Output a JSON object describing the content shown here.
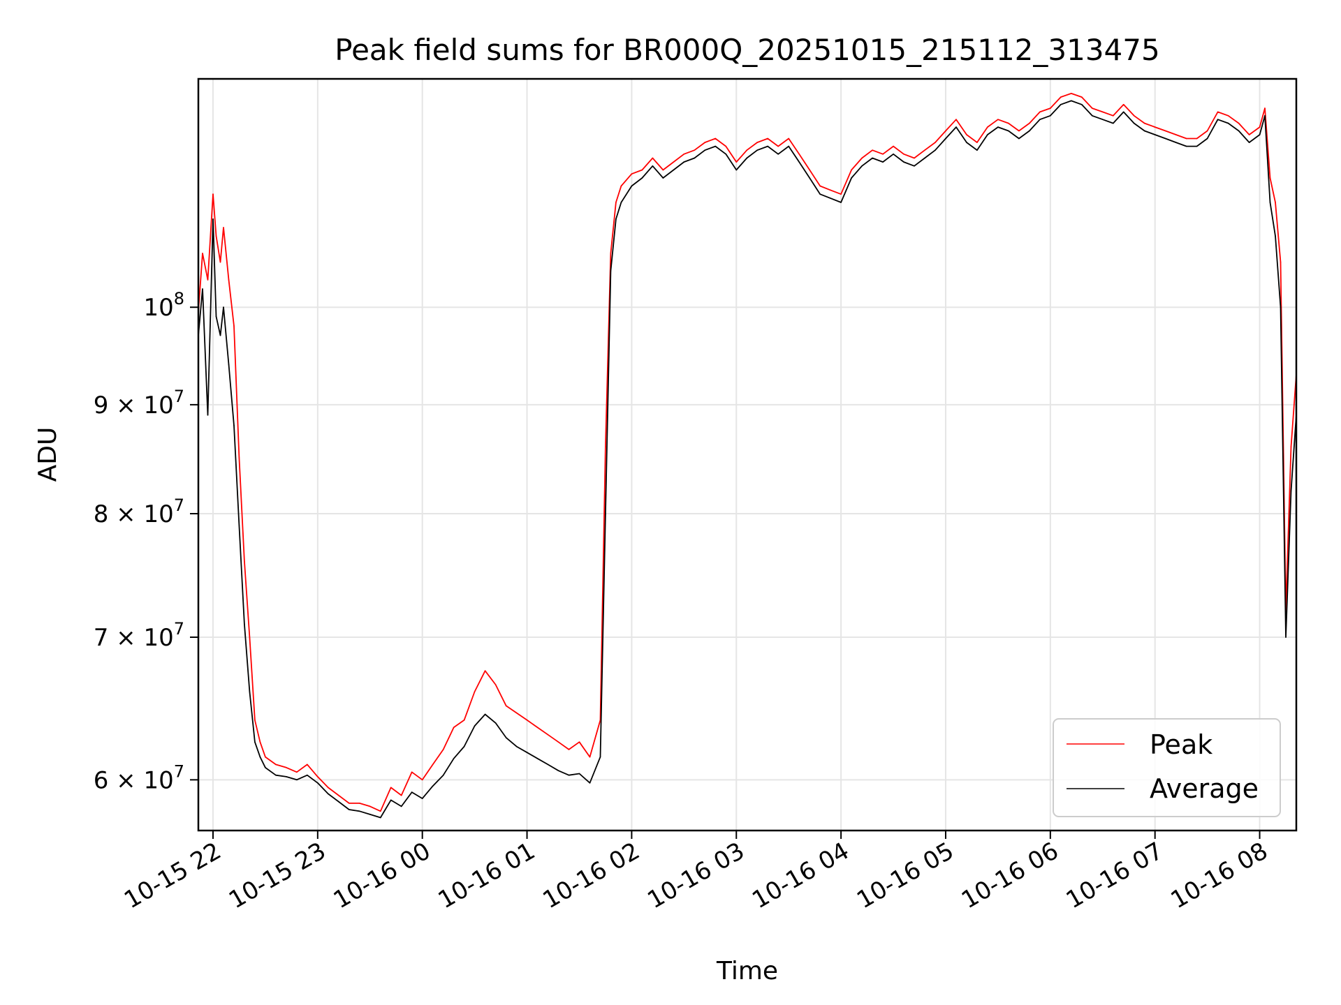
{
  "chart_data": {
    "type": "line",
    "title": "Peak field sums for BR000Q_20251015_215112_313475",
    "xlabel": "Time",
    "ylabel": "ADU",
    "y_scale": "log",
    "ylim": [
      56800000,
      128000000
    ],
    "xlim": [
      21.86,
      32.35
    ],
    "grid": true,
    "legend_position": "lower-right",
    "x_ticks": [
      {
        "value": 22,
        "label": "10-15 22"
      },
      {
        "value": 23,
        "label": "10-15 23"
      },
      {
        "value": 24,
        "label": "10-16 00"
      },
      {
        "value": 25,
        "label": "10-16 01"
      },
      {
        "value": 26,
        "label": "10-16 02"
      },
      {
        "value": 27,
        "label": "10-16 03"
      },
      {
        "value": 28,
        "label": "10-16 04"
      },
      {
        "value": 29,
        "label": "10-16 05"
      },
      {
        "value": 30,
        "label": "10-16 06"
      },
      {
        "value": 31,
        "label": "10-16 07"
      },
      {
        "value": 32,
        "label": "10-16 08"
      }
    ],
    "y_ticks": [
      {
        "value": 60000000,
        "label": "6 × 10⁷",
        "base": "6 × 10",
        "exp": "7"
      },
      {
        "value": 70000000,
        "label": "7 × 10⁷",
        "base": "7 × 10",
        "exp": "7"
      },
      {
        "value": 80000000,
        "label": "8 × 10⁷",
        "base": "8 × 10",
        "exp": "7"
      },
      {
        "value": 90000000,
        "label": "9 × 10⁷",
        "base": "9 × 10",
        "exp": "7"
      },
      {
        "value": 100000000,
        "label": "10⁸",
        "base": "10",
        "exp": "8"
      }
    ],
    "x_units": "hours since 2025-10-15 00:00",
    "series": [
      {
        "name": "Peak",
        "color": "#ff0000",
        "x": [
          21.86,
          21.9,
          21.95,
          22.0,
          22.03,
          22.07,
          22.1,
          22.15,
          22.2,
          22.25,
          22.3,
          22.35,
          22.4,
          22.45,
          22.5,
          22.6,
          22.7,
          22.8,
          22.9,
          23.0,
          23.1,
          23.2,
          23.3,
          23.4,
          23.5,
          23.6,
          23.7,
          23.8,
          23.9,
          24.0,
          24.1,
          24.2,
          24.3,
          24.4,
          24.5,
          24.6,
          24.7,
          24.8,
          24.9,
          25.0,
          25.1,
          25.2,
          25.3,
          25.4,
          25.5,
          25.6,
          25.7,
          25.75,
          25.8,
          25.85,
          25.9,
          26.0,
          26.1,
          26.2,
          26.3,
          26.4,
          26.5,
          26.6,
          26.7,
          26.8,
          26.9,
          27.0,
          27.1,
          27.2,
          27.3,
          27.4,
          27.5,
          27.6,
          27.7,
          27.8,
          27.9,
          28.0,
          28.1,
          28.2,
          28.3,
          28.4,
          28.5,
          28.6,
          28.7,
          28.8,
          28.9,
          29.0,
          29.1,
          29.2,
          29.3,
          29.4,
          29.5,
          29.6,
          29.7,
          29.8,
          29.9,
          30.0,
          30.1,
          30.2,
          30.3,
          30.4,
          30.5,
          30.6,
          30.7,
          30.8,
          30.9,
          31.0,
          31.1,
          31.2,
          31.3,
          31.4,
          31.5,
          31.6,
          31.7,
          31.8,
          31.9,
          32.0,
          32.05,
          32.1,
          32.15,
          32.2,
          32.25,
          32.3,
          32.35
        ],
        "values": [
          99500000,
          106000000,
          103000000,
          113000000,
          108000000,
          105000000,
          109000000,
          103000000,
          98000000,
          85000000,
          76000000,
          70000000,
          64000000,
          62500000,
          61500000,
          61000000,
          60800000,
          60500000,
          61000000,
          60200000,
          59500000,
          59000000,
          58500000,
          58500000,
          58300000,
          58000000,
          59500000,
          59000000,
          60500000,
          60000000,
          61000000,
          62000000,
          63500000,
          64000000,
          66000000,
          67500000,
          66500000,
          65000000,
          64500000,
          64000000,
          63500000,
          63000000,
          62500000,
          62000000,
          62500000,
          61500000,
          64000000,
          86000000,
          106000000,
          112000000,
          114000000,
          115500000,
          116000000,
          117500000,
          116000000,
          117000000,
          118000000,
          118500000,
          119500000,
          120000000,
          119000000,
          117000000,
          118500000,
          119500000,
          120000000,
          119000000,
          120000000,
          118000000,
          116000000,
          114000000,
          113500000,
          113000000,
          116000000,
          117500000,
          118500000,
          118000000,
          119000000,
          118000000,
          117500000,
          118500000,
          119500000,
          121000000,
          122500000,
          120500000,
          119500000,
          121500000,
          122500000,
          122000000,
          121000000,
          122000000,
          123500000,
          124000000,
          125500000,
          126000000,
          125500000,
          124000000,
          123500000,
          123000000,
          124500000,
          123000000,
          122000000,
          121500000,
          121000000,
          120500000,
          120000000,
          120000000,
          121000000,
          123500000,
          123000000,
          122000000,
          120500000,
          121500000,
          124000000,
          115000000,
          112000000,
          105000000,
          72000000,
          86000000,
          93000000
        ]
      },
      {
        "name": "Average",
        "color": "#000000",
        "x": [
          21.86,
          21.9,
          21.95,
          22.0,
          22.03,
          22.07,
          22.1,
          22.15,
          22.2,
          22.25,
          22.3,
          22.35,
          22.4,
          22.45,
          22.5,
          22.6,
          22.7,
          22.8,
          22.9,
          23.0,
          23.1,
          23.2,
          23.3,
          23.4,
          23.5,
          23.6,
          23.7,
          23.8,
          23.9,
          24.0,
          24.1,
          24.2,
          24.3,
          24.4,
          24.5,
          24.6,
          24.7,
          24.8,
          24.9,
          25.0,
          25.1,
          25.2,
          25.3,
          25.4,
          25.5,
          25.6,
          25.7,
          25.75,
          25.8,
          25.85,
          25.9,
          26.0,
          26.1,
          26.2,
          26.3,
          26.4,
          26.5,
          26.6,
          26.7,
          26.8,
          26.9,
          27.0,
          27.1,
          27.2,
          27.3,
          27.4,
          27.5,
          27.6,
          27.7,
          27.8,
          27.9,
          28.0,
          28.1,
          28.2,
          28.3,
          28.4,
          28.5,
          28.6,
          28.7,
          28.8,
          28.9,
          29.0,
          29.1,
          29.2,
          29.3,
          29.4,
          29.5,
          29.6,
          29.7,
          29.8,
          29.9,
          30.0,
          30.1,
          30.2,
          30.3,
          30.4,
          30.5,
          30.6,
          30.7,
          30.8,
          30.9,
          31.0,
          31.1,
          31.2,
          31.3,
          31.4,
          31.5,
          31.6,
          31.7,
          31.8,
          31.9,
          32.0,
          32.05,
          32.1,
          32.15,
          32.2,
          32.25,
          32.3,
          32.35
        ],
        "values": [
          97000000,
          102000000,
          89000000,
          110000000,
          99000000,
          97000000,
          100000000,
          94000000,
          88000000,
          79000000,
          71000000,
          66000000,
          62500000,
          61500000,
          60800000,
          60300000,
          60200000,
          60000000,
          60300000,
          59800000,
          59100000,
          58600000,
          58100000,
          58000000,
          57800000,
          57600000,
          58700000,
          58300000,
          59200000,
          58800000,
          59600000,
          60300000,
          61400000,
          62200000,
          63600000,
          64400000,
          63800000,
          62800000,
          62200000,
          61800000,
          61400000,
          61000000,
          60600000,
          60300000,
          60400000,
          59800000,
          61500000,
          80000000,
          104000000,
          110000000,
          112000000,
          114000000,
          115000000,
          116500000,
          115000000,
          116000000,
          117000000,
          117500000,
          118500000,
          119000000,
          118000000,
          116000000,
          117500000,
          118500000,
          119000000,
          118000000,
          119000000,
          117000000,
          115000000,
          113000000,
          112500000,
          112000000,
          115000000,
          116500000,
          117500000,
          117000000,
          118000000,
          117000000,
          116500000,
          117500000,
          118500000,
          120000000,
          121500000,
          119500000,
          118500000,
          120500000,
          121500000,
          121000000,
          120000000,
          121000000,
          122500000,
          123000000,
          124500000,
          125000000,
          124500000,
          123000000,
          122500000,
          122000000,
          123500000,
          122000000,
          121000000,
          120500000,
          120000000,
          119500000,
          119000000,
          119000000,
          120000000,
          122500000,
          122000000,
          121000000,
          119500000,
          120500000,
          123000000,
          112000000,
          108000000,
          100000000,
          70000000,
          82000000,
          89000000
        ]
      }
    ]
  }
}
